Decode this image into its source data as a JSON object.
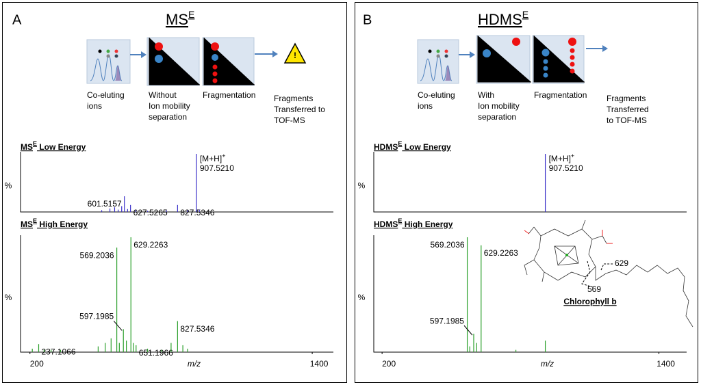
{
  "panels": [
    {
      "letter": "A",
      "heading": {
        "base": "MS",
        "sup": "E"
      },
      "steps": [
        [
          "Co-eluting",
          "ions"
        ],
        [
          "Without",
          "Ion mobility",
          "separation"
        ],
        [
          "Fragmentation"
        ],
        [
          "Fragments",
          "Transferred to",
          "TOF-MS"
        ]
      ]
    },
    {
      "letter": "B",
      "heading": {
        "base": "HDMS",
        "sup": "E"
      },
      "steps": [
        [
          "Co-eluting",
          "ions"
        ],
        [
          "With",
          "Ion mobility",
          "separation"
        ],
        [
          "Fragmentation"
        ],
        [
          "Fragments",
          "Transferred",
          "to TOF-MS"
        ]
      ],
      "structure": {
        "name": "Chlorophyll b",
        "cuts": [
          "629",
          "569"
        ]
      }
    }
  ],
  "chart_data": [
    {
      "type": "bar",
      "title": {
        "base": "MS",
        "sup": "E",
        "rest": " Low Energy"
      },
      "ylabel": "%",
      "color": "#3a30c8",
      "x": [
        505,
        540,
        560,
        575,
        590,
        601.5157,
        615,
        627.5265,
        650,
        700,
        780,
        827.5346,
        870,
        907.521,
        920
      ],
      "values": [
        3,
        6,
        8,
        4,
        10,
        27,
        5,
        12,
        3,
        2,
        3,
        12,
        3,
        100,
        4
      ],
      "x_labels": [
        null,
        null,
        null,
        null,
        null,
        "601.5157",
        null,
        "627.5265",
        null,
        null,
        null,
        "827.5346",
        null,
        {
          "lines": [
            "[M+H]",
            "907.5210"
          ],
          "sup": "+"
        },
        null
      ],
      "xlim": [
        160,
        1490
      ],
      "ylim": [
        0,
        100
      ]
    },
    {
      "type": "bar",
      "title": {
        "base": "MS",
        "sup": "E",
        "rest": " High Energy"
      },
      "ylabel": "%",
      "xlabel": "m/z",
      "color": "#2ca02c",
      "x": [
        210,
        237.1066,
        260,
        290,
        330,
        490,
        520,
        545,
        569.2036,
        580,
        597.1985,
        610,
        629.2263,
        640,
        651.1966,
        700,
        760,
        800,
        827.5346,
        850,
        870
      ],
      "values": [
        3,
        7,
        2,
        2,
        2,
        5,
        8,
        12,
        91,
        8,
        20,
        10,
        100,
        8,
        6,
        3,
        2,
        8,
        27,
        6,
        3
      ],
      "x_labels": [
        null,
        "237.1066",
        null,
        null,
        null,
        null,
        null,
        null,
        "569.2036",
        null,
        "597.1985",
        null,
        "629.2263",
        null,
        "651.1966",
        null,
        null,
        null,
        "827.5346",
        null,
        null
      ],
      "xlim": [
        160,
        1490
      ],
      "ylim": [
        0,
        100
      ],
      "xticks": [
        200,
        1400
      ]
    },
    {
      "type": "bar",
      "title": {
        "base": "HDMS",
        "sup": "E",
        "rest": " Low Energy"
      },
      "ylabel": "%",
      "color": "#3a30c8",
      "x": [
        907.521
      ],
      "values": [
        100
      ],
      "x_labels": [
        {
          "lines": [
            "[M+H]",
            "907.5210"
          ],
          "sup": "+"
        }
      ],
      "xlim": [
        164,
        1520
      ],
      "ylim": [
        0,
        100
      ]
    },
    {
      "type": "bar",
      "title": {
        "base": "HDMS",
        "sup": "E",
        "rest": " High Energy"
      },
      "ylabel": "%",
      "xlabel": "m/z",
      "color": "#2ca02c",
      "x": [
        569.2036,
        580,
        597.1985,
        610,
        629.2263,
        780,
        907.521
      ],
      "values": [
        100,
        5,
        16,
        8,
        93,
        2,
        10
      ],
      "x_labels": [
        "569.2036",
        null,
        "597.1985",
        null,
        "629.2263",
        null,
        null
      ],
      "xlim": [
        164,
        1520
      ],
      "ylim": [
        0,
        100
      ],
      "xticks": [
        200,
        1400
      ]
    }
  ]
}
